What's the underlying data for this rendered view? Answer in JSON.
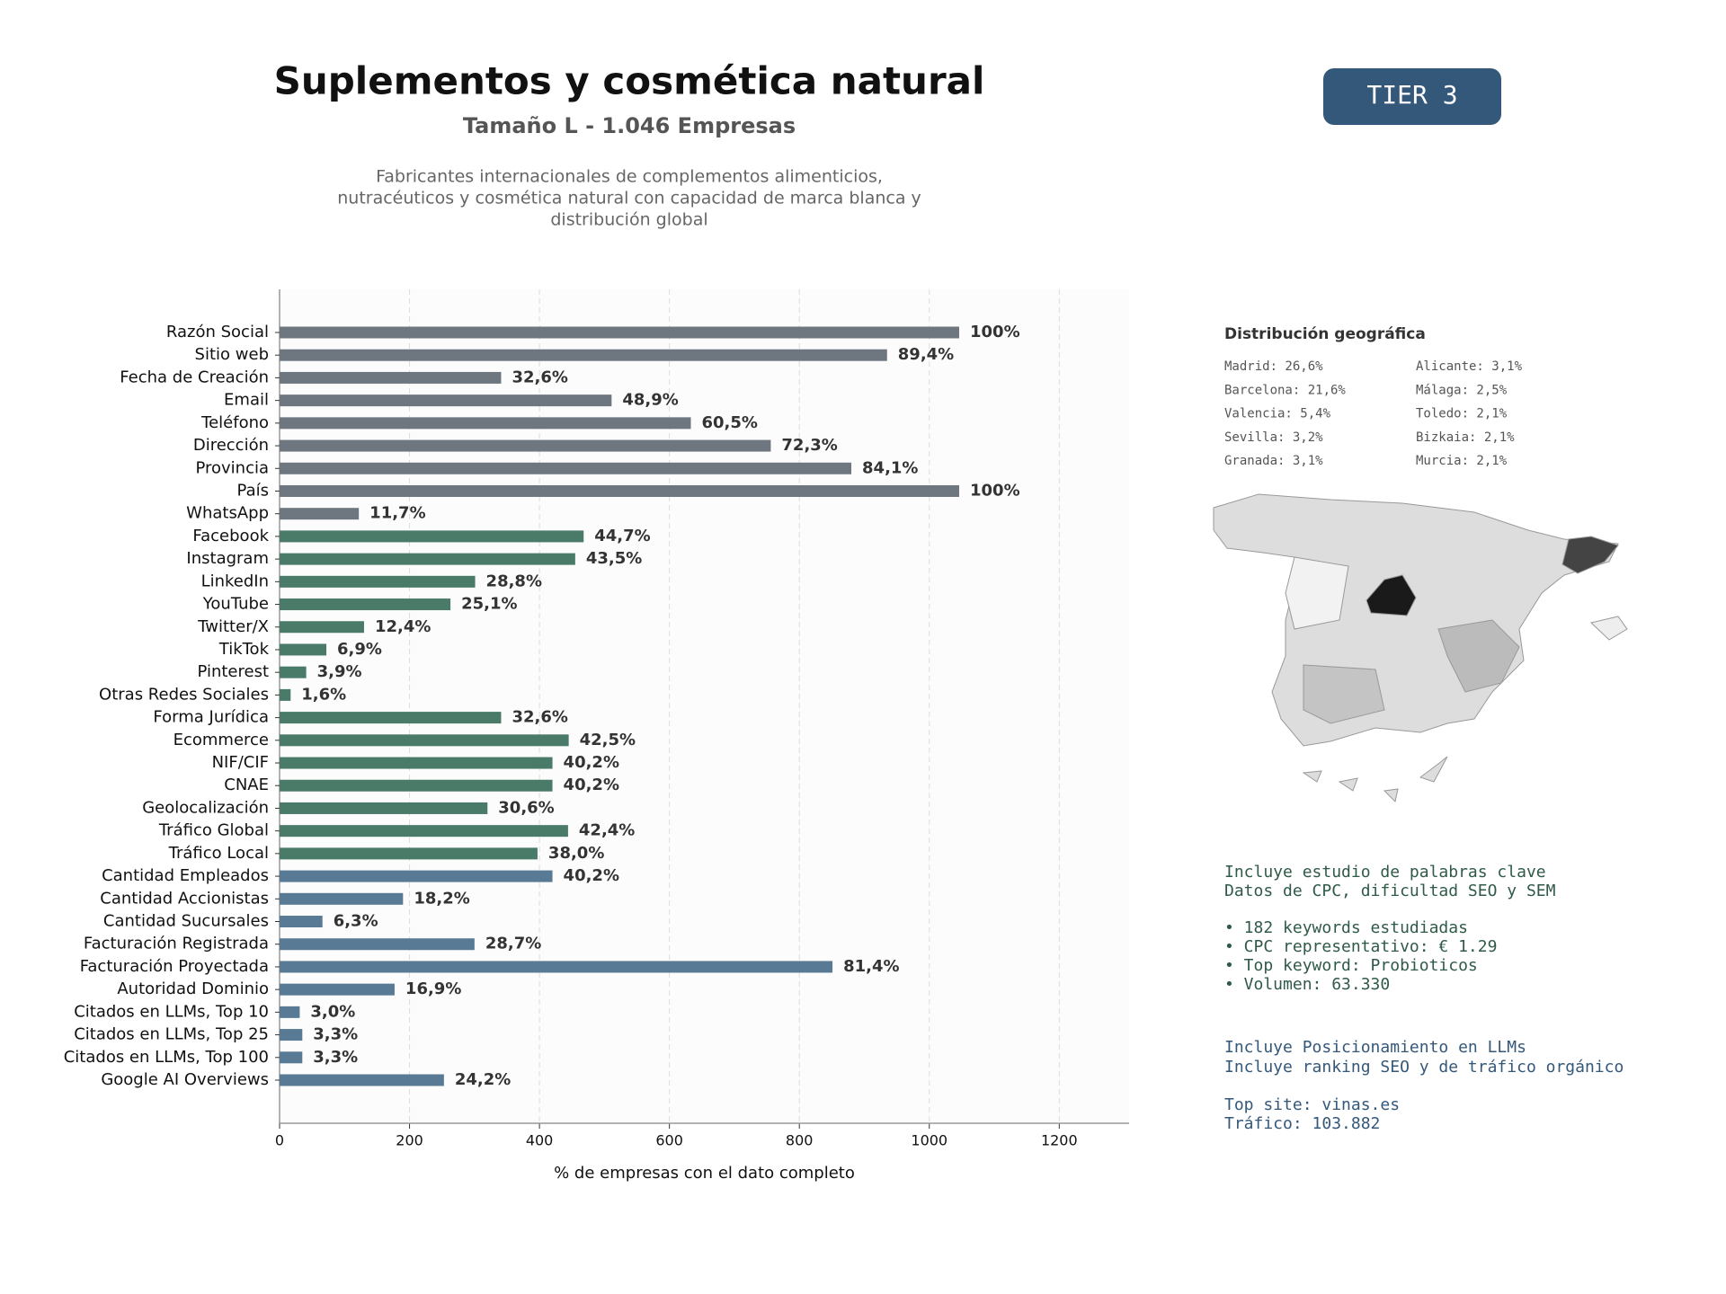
{
  "header": {
    "title": "Suplementos y cosmética natural",
    "subtitle": "Tamaño L - 1.046 Empresas",
    "description": [
      "Fabricantes internacionales de complementos alimenticios,",
      "nutracéuticos y cosmética natural con capacidad de marca blanca y",
      "distribución global"
    ]
  },
  "badge": "TIER 3",
  "geo": {
    "title": "Distribución geográfica",
    "entries": [
      "Madrid: 26,6%",
      "Barcelona: 21,6%",
      "Valencia: 5,4%",
      "Sevilla: 3,2%",
      "Granada: 3,1%",
      "Alicante: 3,1%",
      "Málaga: 2,5%",
      "Toledo: 2,1%",
      "Bizkaia: 2,1%",
      "Murcia: 2,1%"
    ]
  },
  "keywords": {
    "intro": [
      "Incluye estudio de palabras clave",
      "Datos de CPC, dificultad SEO y SEM"
    ],
    "bullets": [
      "• 182 keywords estudiadas",
      "• CPC representativo: € 1.29",
      "• Top keyword: Probioticos",
      "• Volumen: 63.330"
    ]
  },
  "llm": {
    "intro": [
      "Incluye Posicionamiento en LLMs",
      "Incluye ranking SEO y de tráfico orgánico"
    ],
    "site": [
      "Top site: vinas.es",
      "Tráfico: 103.882"
    ]
  },
  "chart_data": {
    "type": "bar",
    "orientation": "horizontal",
    "xlabel": "% de empresas con el dato completo",
    "categories": [
      "Razón Social",
      "Sitio web",
      "Fecha de Creación",
      "Email",
      "Teléfono",
      "Dirección",
      "Provincia",
      "País",
      "WhatsApp",
      "Facebook",
      "Instagram",
      "LinkedIn",
      "YouTube",
      "Twitter/X",
      "TikTok",
      "Pinterest",
      "Otras Redes Sociales",
      "Forma Jurídica",
      "Ecommerce",
      "NIF/CIF",
      "CNAE",
      "Geolocalización",
      "Tráfico Global",
      "Tráfico Local",
      "Cantidad Empleados",
      "Cantidad Accionistas",
      "Cantidad Sucursales",
      "Facturación Registrada",
      "Facturación Proyectada",
      "Autoridad Dominio",
      "Citados en LLMs, Top 10",
      "Citados en LLMs, Top 25",
      "Citados en LLMs, Top 100",
      "Google AI Overviews"
    ],
    "values": [
      1046,
      935,
      341,
      511,
      633,
      756,
      880,
      1046,
      122,
      468,
      455,
      301,
      263,
      130,
      72,
      41,
      17,
      341,
      445,
      420,
      420,
      320,
      444,
      397,
      420,
      190,
      66,
      300,
      851,
      177,
      31,
      35,
      35,
      253
    ],
    "value_labels": [
      "100%",
      "89,4%",
      "32,6%",
      "48,9%",
      "60,5%",
      "72,3%",
      "84,1%",
      "100%",
      "11,7%",
      "44,7%",
      "43,5%",
      "28,8%",
      "25,1%",
      "12,4%",
      "6,9%",
      "3,9%",
      "1,6%",
      "32,6%",
      "42,5%",
      "40,2%",
      "40,2%",
      "30,6%",
      "42,4%",
      "38,0%",
      "40,2%",
      "18,2%",
      "6,3%",
      "28,7%",
      "81,4%",
      "16,9%",
      "3,0%",
      "3,3%",
      "3,3%",
      "24,2%"
    ],
    "colors": [
      "#6e7780",
      "#6e7780",
      "#6e7780",
      "#6e7780",
      "#6e7780",
      "#6e7780",
      "#6e7780",
      "#6e7780",
      "#6e7780",
      "#4a7a68",
      "#4a7a68",
      "#4a7a68",
      "#4a7a68",
      "#4a7a68",
      "#4a7a68",
      "#4a7a68",
      "#4a7a68",
      "#4a7a68",
      "#4a7a68",
      "#4a7a68",
      "#4a7a68",
      "#4a7a68",
      "#4a7a68",
      "#4a7a68",
      "#587a95",
      "#587a95",
      "#587a95",
      "#587a95",
      "#587a95",
      "#587a95",
      "#587a95",
      "#587a95",
      "#587a95",
      "#587a95"
    ],
    "xlim": [
      0,
      1307.5
    ],
    "xticks": [
      0,
      200,
      400,
      600,
      800,
      1000,
      1200
    ],
    "grid": true
  }
}
